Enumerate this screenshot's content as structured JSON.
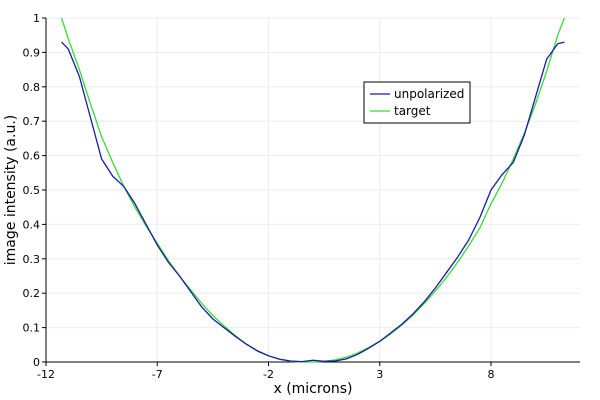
{
  "chart_data": {
    "type": "line",
    "title": "",
    "xlabel": "x (microns)",
    "ylabel": "image intensity (a.u.)",
    "xlim": [
      -12,
      12
    ],
    "ylim": [
      0,
      1
    ],
    "x_ticks": [
      -12,
      -7,
      -2,
      3,
      8
    ],
    "y_ticks": [
      0,
      0.1,
      0.2,
      0.3,
      0.4,
      0.5,
      0.6,
      0.7,
      0.8,
      0.9,
      1
    ],
    "grid": true,
    "legend": {
      "position": "top-right",
      "entries": [
        "unpolarized",
        "target"
      ]
    },
    "series": [
      {
        "name": "unpolarized",
        "color": "#1a1aa6",
        "x": [
          -11.3,
          -11.0,
          -10.5,
          -10.0,
          -9.5,
          -9.0,
          -8.5,
          -8.0,
          -7.5,
          -7.0,
          -6.5,
          -6.0,
          -5.5,
          -5.0,
          -4.5,
          -4.0,
          -3.5,
          -3.0,
          -2.5,
          -2.0,
          -1.5,
          -1.0,
          -0.5,
          0.0,
          0.5,
          1.0,
          1.5,
          2.0,
          2.5,
          3.0,
          3.5,
          4.0,
          4.5,
          5.0,
          5.5,
          6.0,
          6.5,
          7.0,
          7.5,
          8.0,
          8.5,
          9.0,
          9.5,
          10.0,
          10.5,
          11.0,
          11.3
        ],
        "y": [
          0.93,
          0.91,
          0.83,
          0.71,
          0.59,
          0.54,
          0.51,
          0.46,
          0.4,
          0.34,
          0.29,
          0.25,
          0.205,
          0.16,
          0.125,
          0.1,
          0.075,
          0.052,
          0.032,
          0.018,
          0.008,
          0.003,
          0.001,
          0.005,
          0.002,
          0.003,
          0.009,
          0.022,
          0.04,
          0.06,
          0.085,
          0.11,
          0.14,
          0.175,
          0.215,
          0.26,
          0.305,
          0.355,
          0.42,
          0.5,
          0.545,
          0.58,
          0.66,
          0.77,
          0.88,
          0.925,
          0.93
        ]
      },
      {
        "name": "target",
        "color": "#33dd33",
        "x": [
          -11.3,
          -11.0,
          -10.5,
          -10.0,
          -9.5,
          -9.0,
          -8.5,
          -8.0,
          -7.5,
          -7.0,
          -6.5,
          -6.0,
          -5.5,
          -5.0,
          -4.5,
          -4.0,
          -3.5,
          -3.0,
          -2.5,
          -2.0,
          -1.5,
          -1.0,
          -0.5,
          0.0,
          0.5,
          1.0,
          1.5,
          2.0,
          2.5,
          3.0,
          3.5,
          4.0,
          4.5,
          5.0,
          5.5,
          6.0,
          6.5,
          7.0,
          7.5,
          8.0,
          8.5,
          9.0,
          9.5,
          10.0,
          10.5,
          11.0,
          11.3
        ],
        "y": [
          1.0,
          0.94,
          0.85,
          0.75,
          0.655,
          0.58,
          0.51,
          0.45,
          0.395,
          0.345,
          0.295,
          0.25,
          0.21,
          0.17,
          0.135,
          0.105,
          0.077,
          0.052,
          0.033,
          0.018,
          0.008,
          0.002,
          0.0,
          0.0,
          0.002,
          0.006,
          0.014,
          0.026,
          0.042,
          0.06,
          0.082,
          0.108,
          0.137,
          0.17,
          0.206,
          0.246,
          0.29,
          0.338,
          0.39,
          0.46,
          0.52,
          0.59,
          0.665,
          0.75,
          0.845,
          0.95,
          1.0
        ]
      }
    ]
  }
}
